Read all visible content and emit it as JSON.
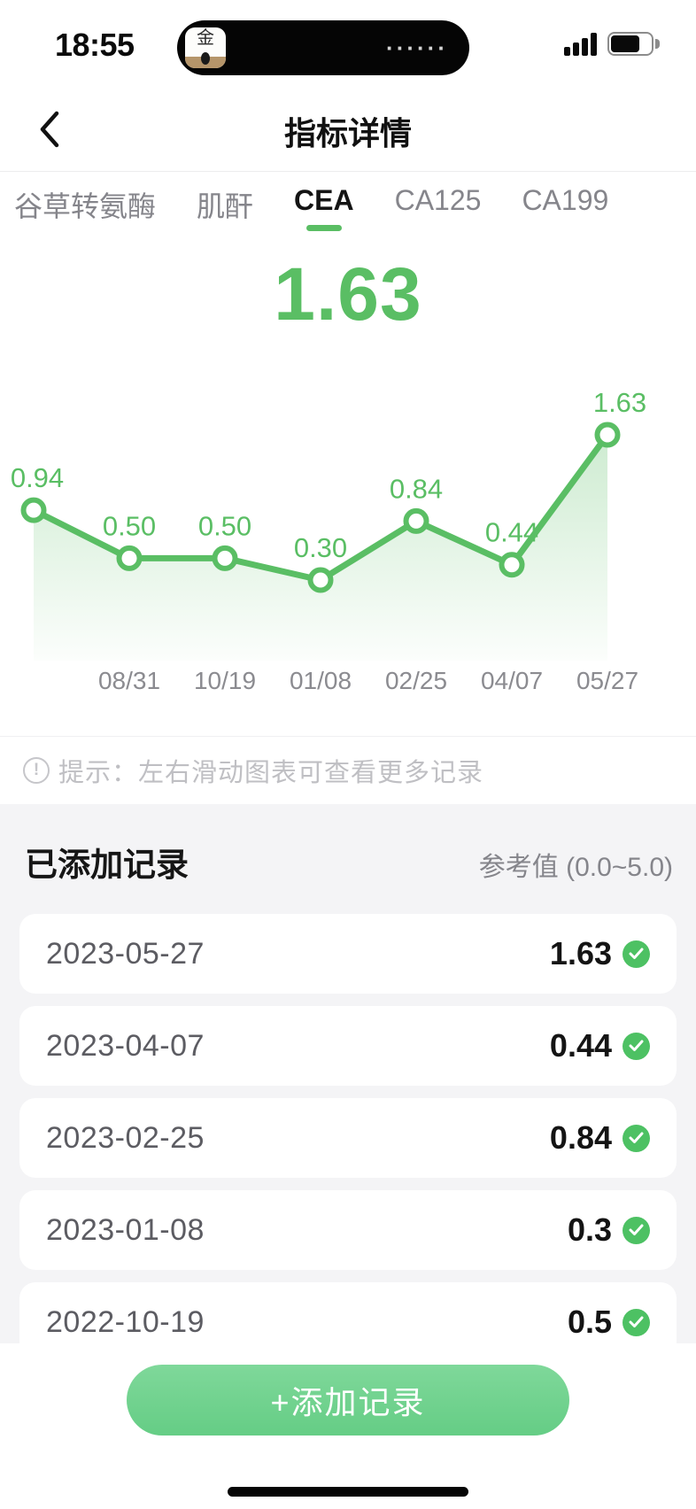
{
  "colors": {
    "green": "#5abe64",
    "check_green": "#4dc163",
    "button_green_top": "#7fd89a",
    "button_green_bottom": "#65cd85",
    "area_fill": "#5abe64"
  },
  "status_bar": {
    "time": "18:55",
    "island_dots": "······",
    "app_thumb_glyph": "金"
  },
  "header": {
    "title": "指标详情"
  },
  "tabs": {
    "active_index": 2,
    "items": [
      {
        "label": "谷草转氨酶"
      },
      {
        "label": "肌酐"
      },
      {
        "label": "CEA"
      },
      {
        "label": "CA125"
      },
      {
        "label": "CA199"
      }
    ]
  },
  "current_value": "1.63",
  "chart_data": {
    "type": "line",
    "title": "",
    "xlabel": "",
    "ylabel": "",
    "categories": [
      "",
      "08/31",
      "10/19",
      "01/08",
      "02/25",
      "04/07",
      "05/27"
    ],
    "values": [
      0.94,
      0.5,
      0.5,
      0.3,
      0.84,
      0.44,
      1.63
    ],
    "point_labels": [
      "0.94",
      "0.50",
      "0.50",
      "0.30",
      "0.84",
      "0.44",
      "1.63"
    ],
    "ylim": [
      0.3,
      1.63
    ],
    "grid": false,
    "legend": false,
    "area_gradient": true
  },
  "tip": {
    "text": "提示：左右滑动图表可查看更多记录"
  },
  "records": {
    "title": "已添加记录",
    "reference_label": "参考值 (0.0~5.0)",
    "items": [
      {
        "date": "2023-05-27",
        "value": "1.63"
      },
      {
        "date": "2023-04-07",
        "value": "0.44"
      },
      {
        "date": "2023-02-25",
        "value": "0.84"
      },
      {
        "date": "2023-01-08",
        "value": "0.3"
      },
      {
        "date": "2022-10-19",
        "value": "0.5"
      }
    ]
  },
  "add_button": {
    "label": "+添加记录"
  }
}
